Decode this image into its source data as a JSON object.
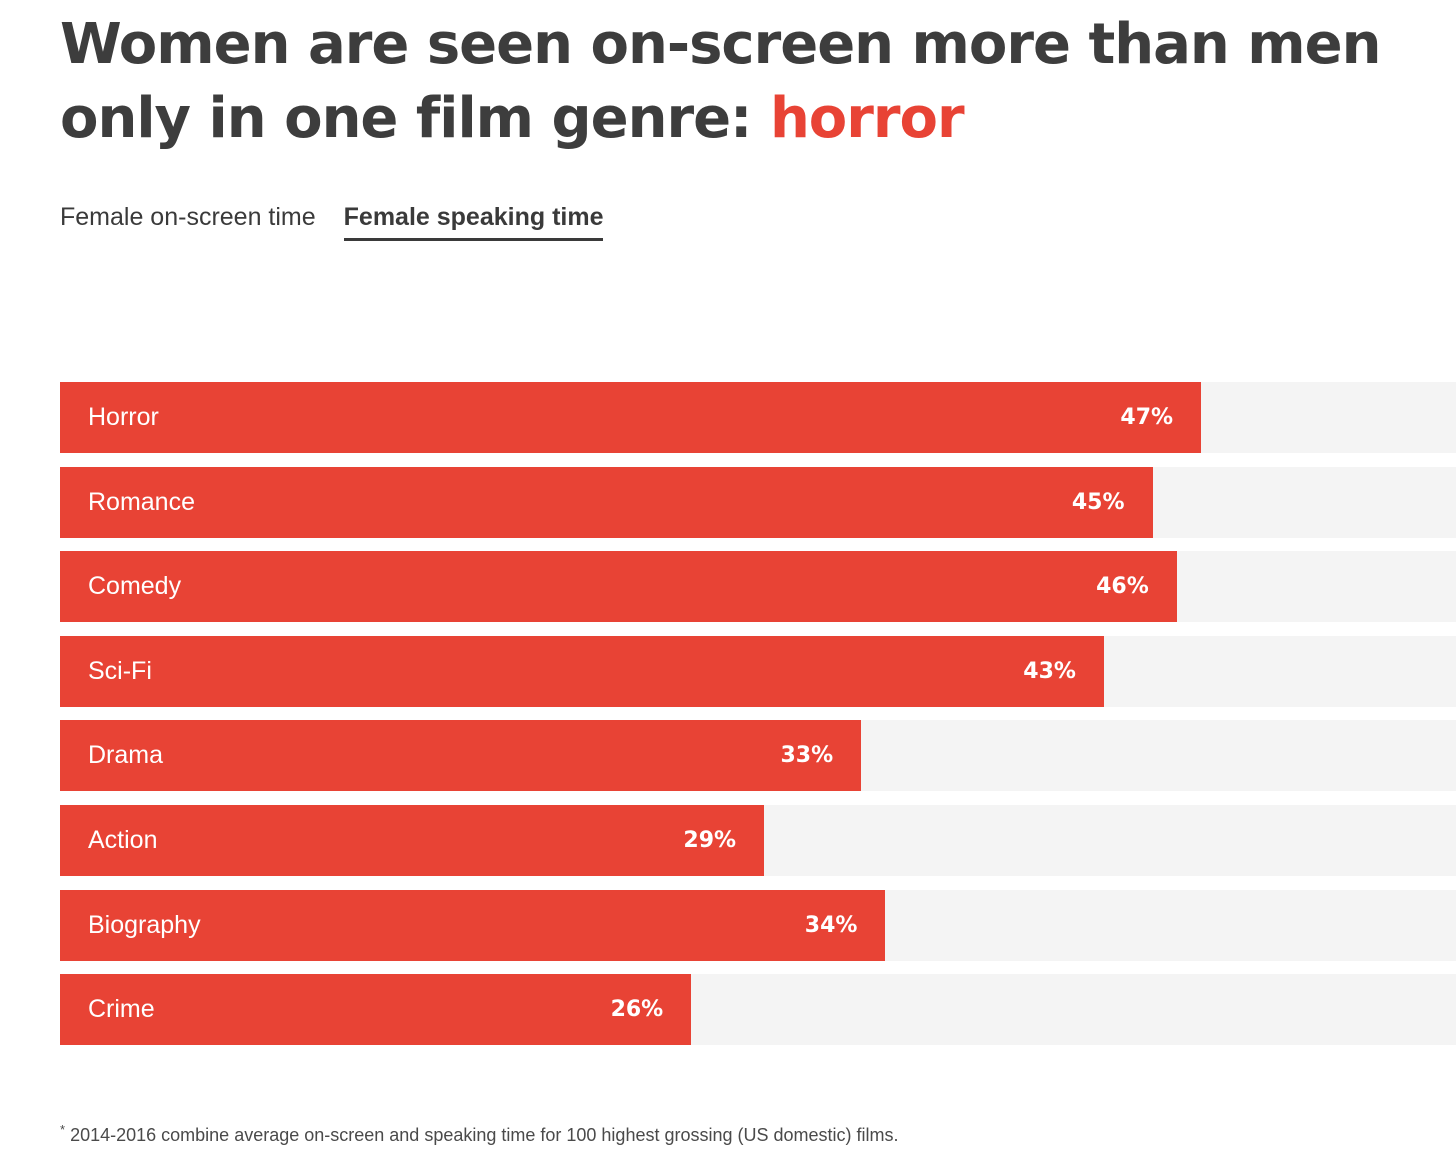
{
  "title": {
    "line1": "Women are seen on-screen more than men",
    "line2_prefix": "only in one film genre: ",
    "accent": "horror"
  },
  "tabs": [
    {
      "label": "Female on-screen time",
      "active": false
    },
    {
      "label": "Female speaking time",
      "active": true
    }
  ],
  "colors": {
    "bar": "#e84335",
    "track": "#f4f4f4",
    "title": "#3d3d3d",
    "accent": "#e84335"
  },
  "chart_data": {
    "type": "bar",
    "orientation": "horizontal",
    "categories": [
      "Horror",
      "Romance",
      "Comedy",
      "Sci-Fi",
      "Drama",
      "Action",
      "Biography",
      "Crime"
    ],
    "values": [
      47,
      45,
      46,
      43,
      33,
      29,
      34,
      26
    ],
    "value_labels": [
      "47%",
      "45%",
      "46%",
      "43%",
      "33%",
      "29%",
      "34%",
      "26%"
    ],
    "xlim": [
      0,
      57.5
    ],
    "unit": "%"
  },
  "footnote": {
    "marker": "*",
    "text": "2014-2016 combine average on-screen and speaking time for 100 highest grossing (US domestic) films."
  }
}
